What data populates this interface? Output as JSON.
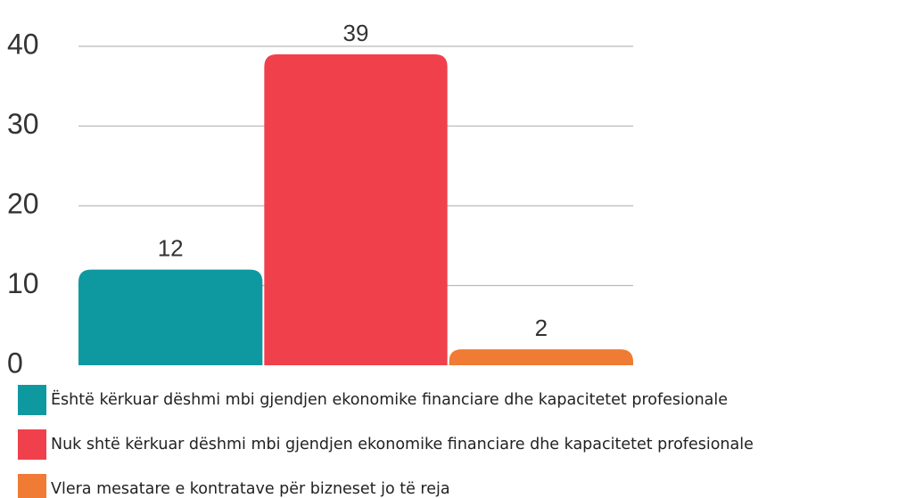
{
  "chart_data": {
    "type": "bar",
    "series": [
      {
        "name": "Është kërkuar dëshmi mbi gjendjen ekonomike financiare dhe kapacitetet profesionale",
        "color": "#0e99a0",
        "values": [
          12
        ]
      },
      {
        "name": "Nuk shtë kërkuar dëshmi mbi gjendjen ekonomike financiare dhe kapacitetet profesionale",
        "color": "#f0404b",
        "values": [
          39
        ]
      },
      {
        "name": "Vlera mesatare e kontratave për bizneset jo të reja",
        "color": "#f07b35",
        "values": [
          2
        ]
      }
    ],
    "ylim": [
      0,
      40
    ],
    "yticks": [
      0,
      10,
      20,
      30,
      40
    ],
    "grid": true,
    "legend": "bottom"
  }
}
